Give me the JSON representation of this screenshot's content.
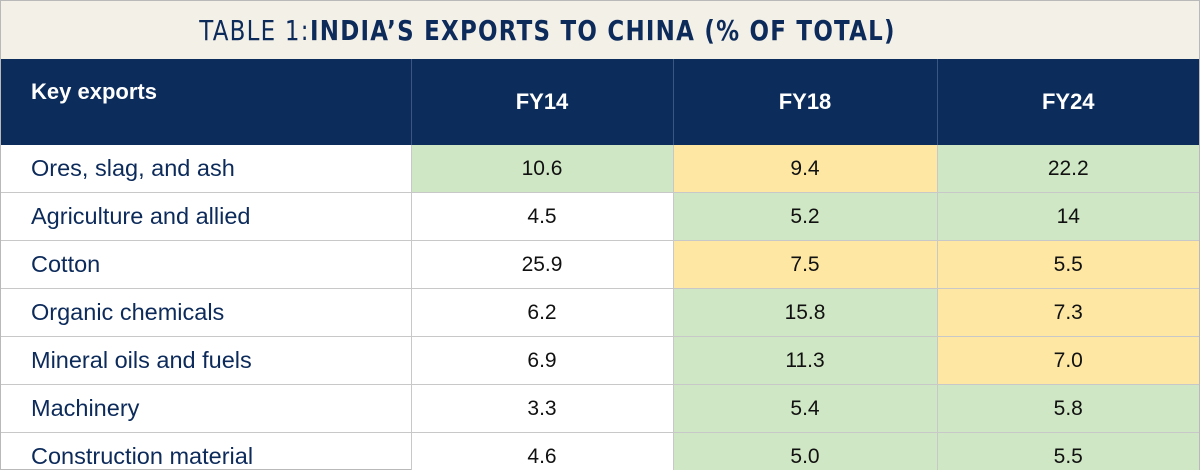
{
  "title": {
    "prefix": "TABLE 1: ",
    "main": "INDIA’S EXPORTS TO CHINA (% OF TOTAL)"
  },
  "colors": {
    "header_bg": "#0c2c5c",
    "title_bg": "#f3f0e8",
    "highlight_green": "#cfe7c4",
    "highlight_yellow": "#fde7a3"
  },
  "table": {
    "headers": [
      "Key exports",
      "FY14",
      "FY18",
      "FY24"
    ],
    "rows": [
      {
        "label": "Ores, slag, and ash",
        "values": [
          "10.6",
          "9.4",
          "22.2"
        ],
        "shading": [
          "green",
          "yellow",
          "green"
        ]
      },
      {
        "label": "Agriculture and allied",
        "values": [
          "4.5",
          "5.2",
          "14"
        ],
        "shading": [
          "none",
          "green",
          "green"
        ]
      },
      {
        "label": "Cotton",
        "values": [
          "25.9",
          "7.5",
          "5.5"
        ],
        "shading": [
          "none",
          "yellow",
          "yellow"
        ]
      },
      {
        "label": "Organic chemicals",
        "values": [
          "6.2",
          "15.8",
          "7.3"
        ],
        "shading": [
          "none",
          "green",
          "yellow"
        ]
      },
      {
        "label": "Mineral oils and fuels",
        "values": [
          "6.9",
          "11.3",
          "7.0"
        ],
        "shading": [
          "none",
          "green",
          "yellow"
        ]
      },
      {
        "label": "Machinery",
        "values": [
          "3.3",
          "5.4",
          "5.8"
        ],
        "shading": [
          "none",
          "green",
          "green"
        ]
      },
      {
        "label": "Construction material",
        "values": [
          "4.6",
          "5.0",
          "5.5"
        ],
        "shading": [
          "none",
          "green",
          "green"
        ]
      }
    ]
  }
}
